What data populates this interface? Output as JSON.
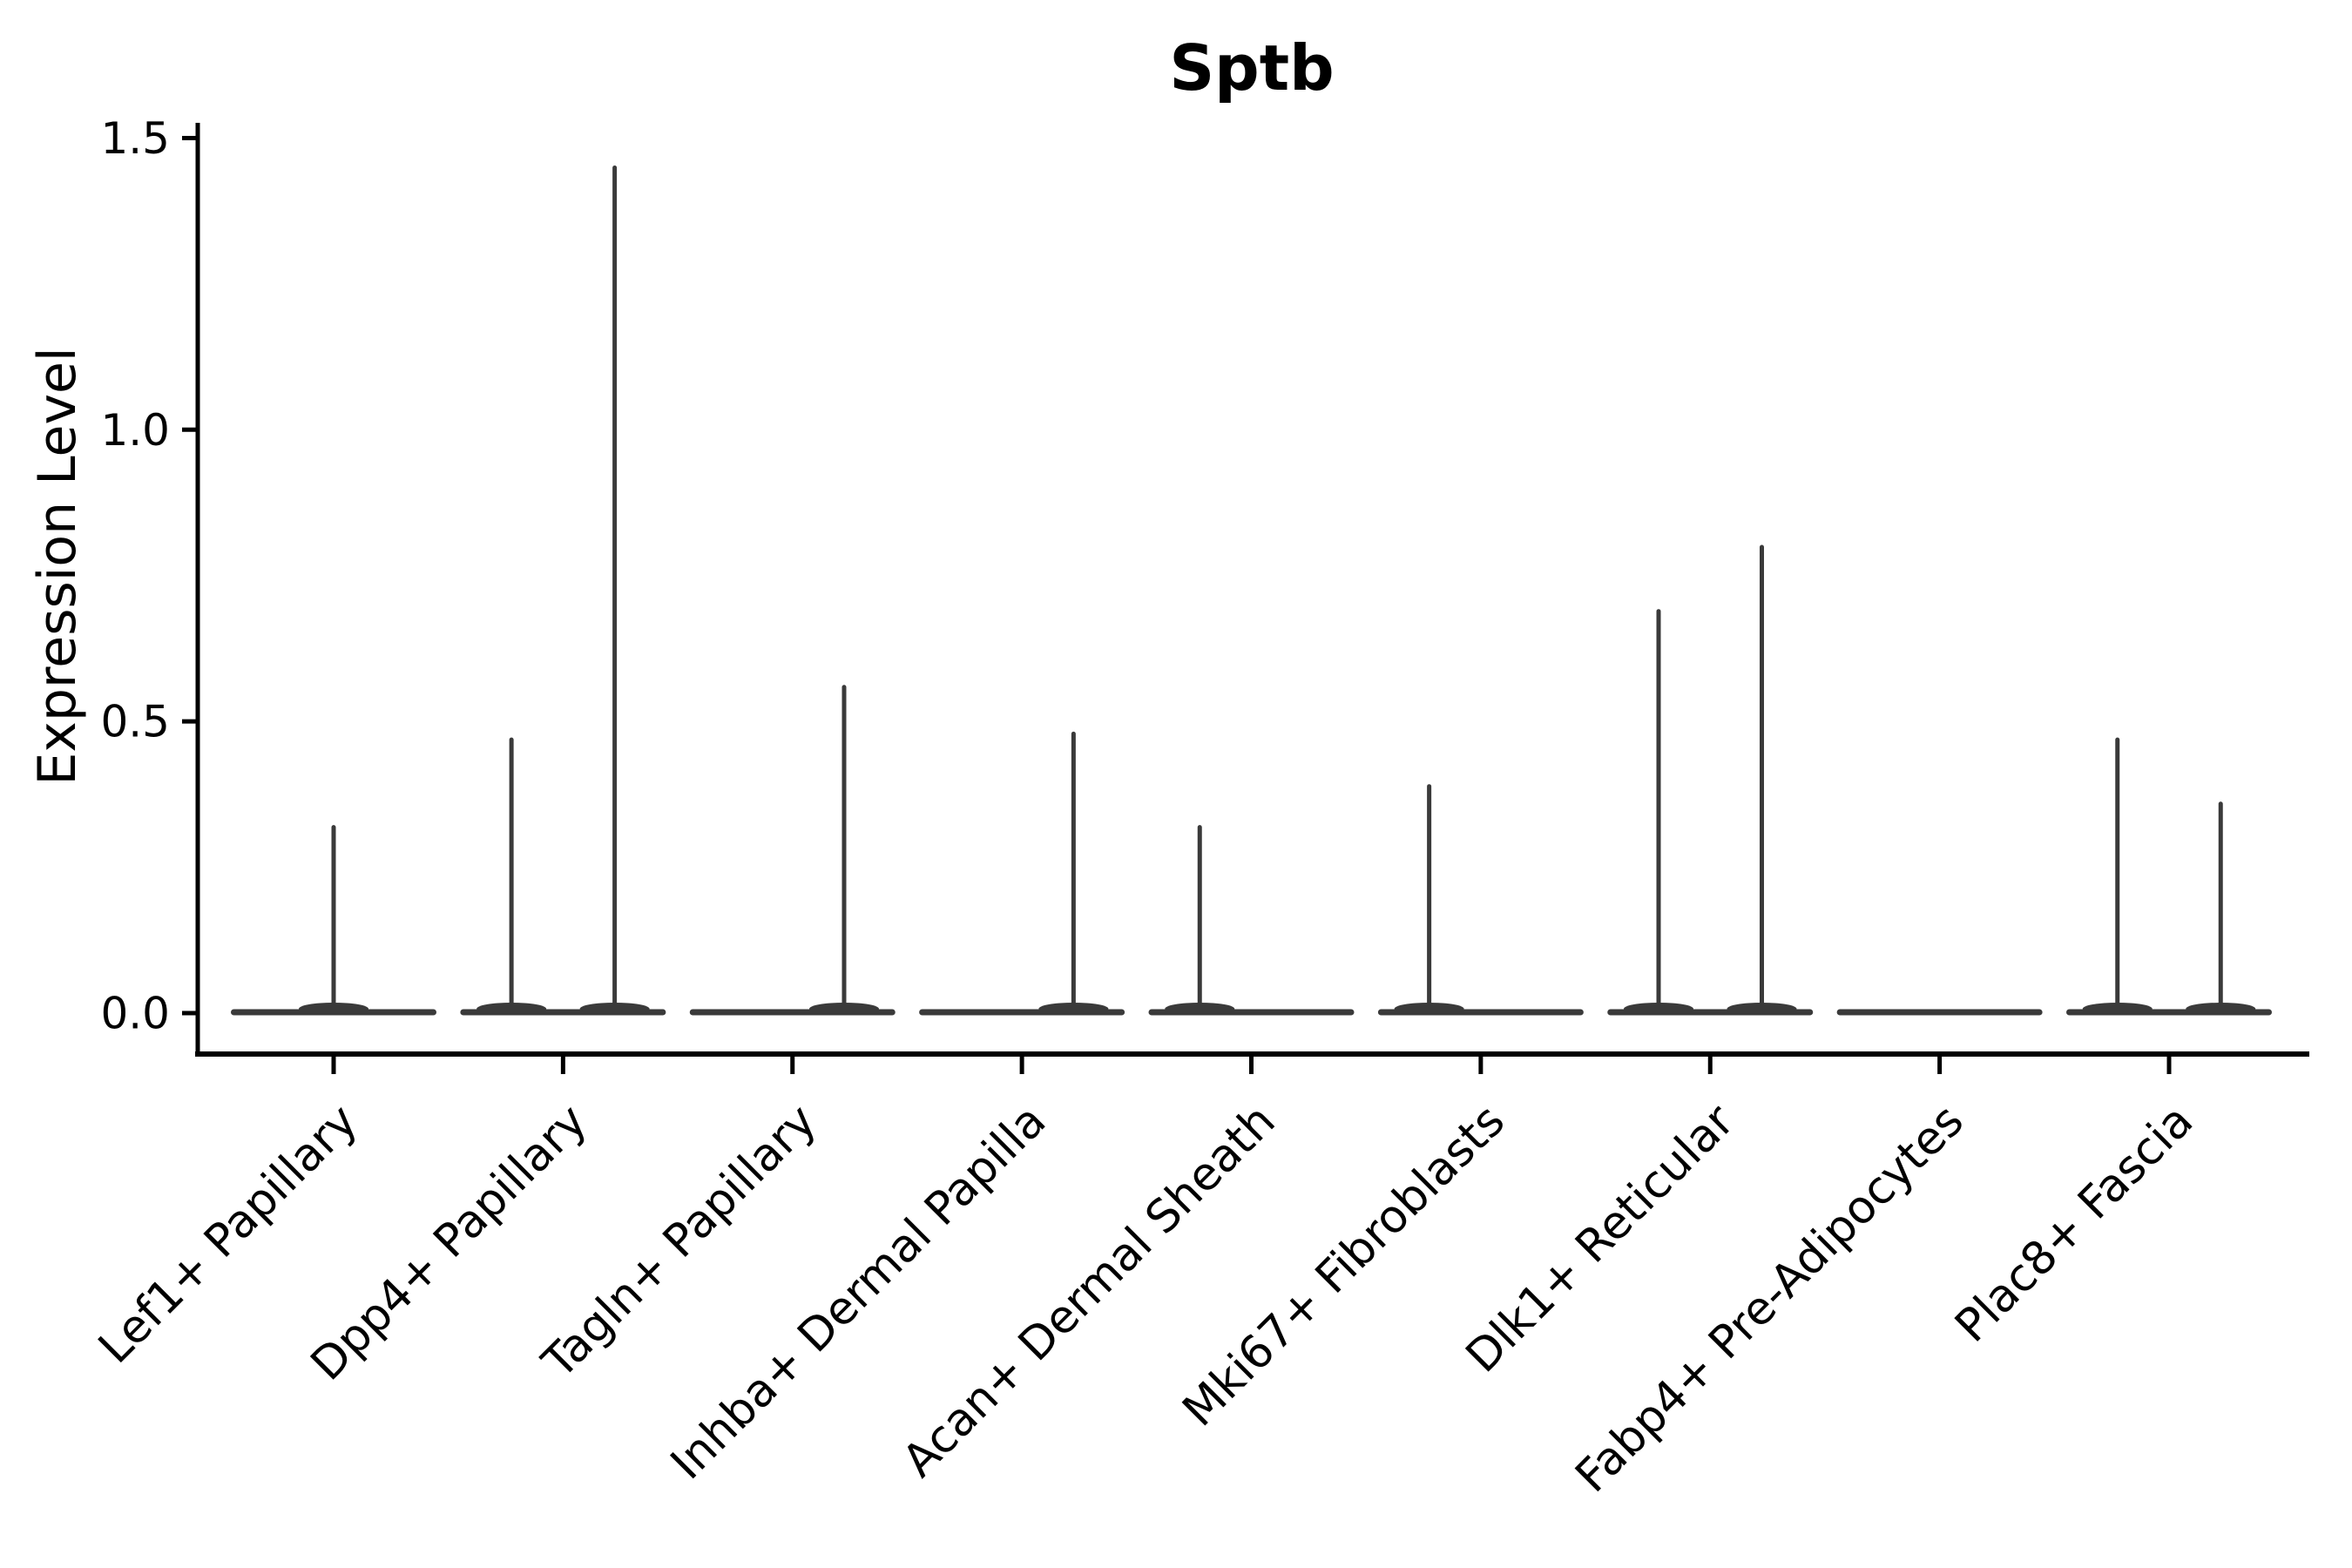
{
  "title": "Sptb",
  "colors": {
    "background": "#ffffff",
    "violin": "#3a3a3a",
    "axis": "#000000",
    "text": "#000000"
  },
  "chart_data": {
    "type": "violin",
    "title": "Sptb",
    "xlabel": "",
    "ylabel": "Expression Level",
    "grid": false,
    "legend": null,
    "ylim": [
      -0.07,
      1.53
    ],
    "yticks": [
      0.0,
      0.5,
      1.0,
      1.5
    ],
    "ytick_labels": [
      "0.0",
      "0.5",
      "1.0",
      "1.5"
    ],
    "categories": [
      "Lef1+ Papillary",
      "Dpp4+ Papillary",
      "Tagln+ Papillary",
      "Inhba+ Dermal Papilla",
      "Acan+ Dermal Sheath",
      "Mki67+ Fibroblasts",
      "Dlk1+ Reticular",
      "Fabp4+ Pre-Adipocytes",
      "Plac8+ Fascia"
    ],
    "baseline_value": 0.0,
    "description": "Violin plot of Sptb expression; every violin is flat at 0 with thin density spikes reaching the listed maximum expression values. Categories with two sub-violins have spikes offset left/right of the category center.",
    "violins": [
      {
        "category": "Lef1+ Papillary",
        "spikes": [
          {
            "position": "center",
            "max": 0.32
          }
        ]
      },
      {
        "category": "Dpp4+ Papillary",
        "spikes": [
          {
            "position": "left",
            "max": 0.47
          },
          {
            "position": "right",
            "max": 1.45
          }
        ]
      },
      {
        "category": "Tagln+ Papillary",
        "spikes": [
          {
            "position": "right",
            "max": 0.56
          }
        ]
      },
      {
        "category": "Inhba+ Dermal Papilla",
        "spikes": [
          {
            "position": "right",
            "max": 0.48
          }
        ]
      },
      {
        "category": "Acan+ Dermal Sheath",
        "spikes": [
          {
            "position": "left",
            "max": 0.32
          }
        ]
      },
      {
        "category": "Mki67+ Fibroblasts",
        "spikes": [
          {
            "position": "left",
            "max": 0.39
          }
        ]
      },
      {
        "category": "Dlk1+ Reticular",
        "spikes": [
          {
            "position": "left",
            "max": 0.69
          },
          {
            "position": "right",
            "max": 0.8
          }
        ]
      },
      {
        "category": "Fabp4+ Pre-Adipocytes",
        "spikes": []
      },
      {
        "category": "Plac8+ Fascia",
        "spikes": [
          {
            "position": "left",
            "max": 0.47
          },
          {
            "position": "right",
            "max": 0.36
          }
        ]
      }
    ]
  }
}
